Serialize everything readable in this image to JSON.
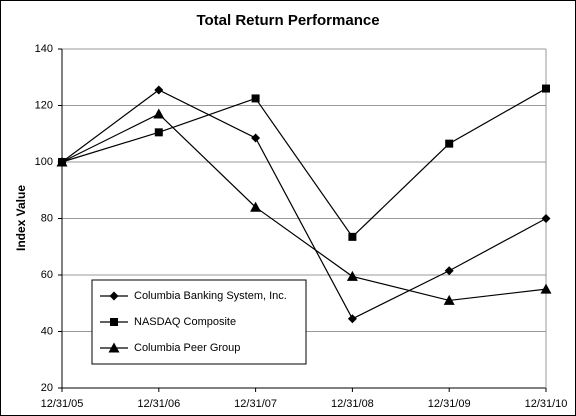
{
  "chart_data": {
    "type": "line",
    "title": "Total Return Performance",
    "y_label": "Index Value",
    "categories": [
      "12/31/05",
      "12/31/06",
      "12/31/07",
      "12/31/08",
      "12/31/09",
      "12/31/10"
    ],
    "series": [
      {
        "name": "Columbia Banking System, Inc.",
        "color": "#000000",
        "marker": "diamond",
        "values": [
          100,
          125.5,
          108.5,
          44.5,
          61.5,
          80
        ]
      },
      {
        "name": "NASDAQ Composite",
        "color": "#000000",
        "marker": "square",
        "values": [
          100,
          110.5,
          122.5,
          73.5,
          106.5,
          126
        ]
      },
      {
        "name": "Columbia Peer Group",
        "color": "#000000",
        "marker": "triangle",
        "values": [
          100,
          117,
          84,
          59.5,
          51,
          55
        ]
      }
    ],
    "ylim": [
      20,
      140
    ],
    "yticks": [
      20,
      40,
      60,
      80,
      100,
      120,
      140
    ],
    "grid": true,
    "legend": "lower-left"
  }
}
